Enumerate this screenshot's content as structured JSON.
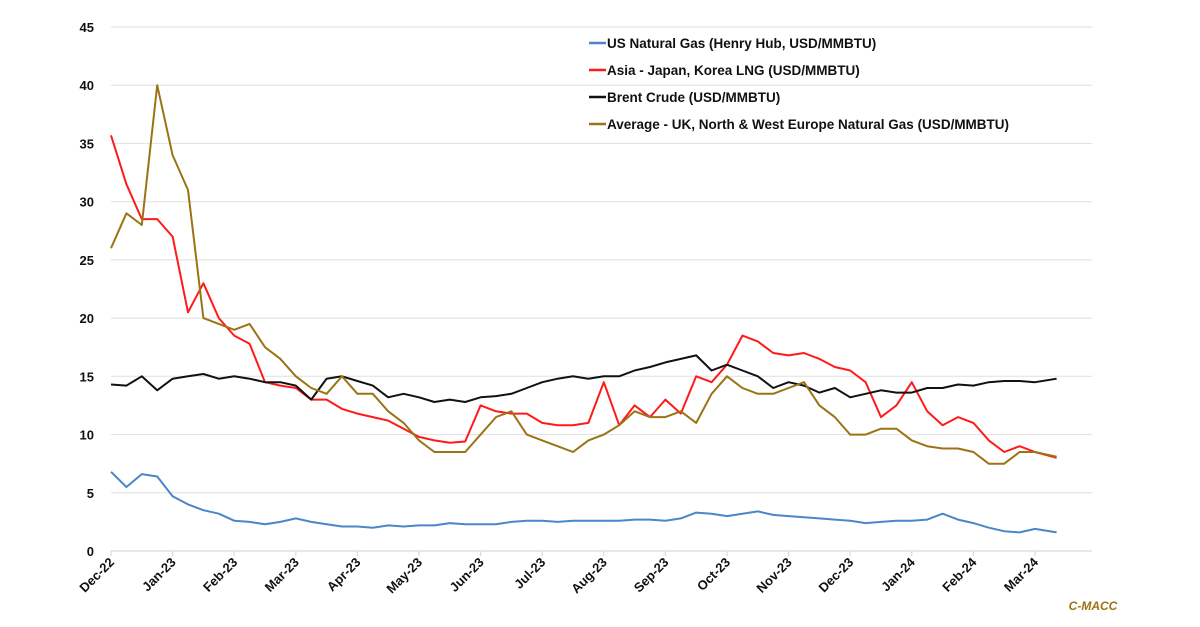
{
  "chart_data": {
    "type": "line",
    "title": "",
    "xlabel": "",
    "ylabel": "",
    "ylim": [
      0,
      45
    ],
    "yticks": [
      0,
      5,
      10,
      15,
      20,
      25,
      30,
      35,
      40,
      45
    ],
    "grid": true,
    "legend_position": "top-right",
    "x_start": "Dec-22",
    "x_unit": "months since Dec-22",
    "xlim": [
      0,
      15.35
    ],
    "xtick_labels": [
      "Dec-22",
      "Jan-23",
      "Feb-23",
      "Mar-23",
      "Apr-23",
      "May-23",
      "Jun-23",
      "Jul-23",
      "Aug-23",
      "Sep-23",
      "Oct-23",
      "Nov-23",
      "Dec-23",
      "Jan-24",
      "Feb-24",
      "Mar-24"
    ],
    "x": [
      0,
      0.25,
      0.5,
      0.75,
      1,
      1.25,
      1.5,
      1.75,
      2,
      2.25,
      2.5,
      2.75,
      3,
      3.25,
      3.5,
      3.75,
      4,
      4.25,
      4.5,
      4.75,
      5,
      5.25,
      5.5,
      5.75,
      6,
      6.25,
      6.5,
      6.75,
      7,
      7.25,
      7.5,
      7.75,
      8,
      8.25,
      8.5,
      8.75,
      9,
      9.25,
      9.5,
      9.75,
      10,
      10.25,
      10.5,
      10.75,
      11,
      11.25,
      11.5,
      11.75,
      12,
      12.25,
      12.5,
      12.75,
      13,
      13.25,
      13.5,
      13.75,
      14,
      14.25,
      14.5,
      14.75,
      15,
      15.35
    ],
    "series": [
      {
        "name": "US Natural Gas (Henry Hub, USD/MMBTU)",
        "color": "#4a86c8",
        "values": [
          6.8,
          5.5,
          6.6,
          6.4,
          4.7,
          4.0,
          3.5,
          3.2,
          2.6,
          2.5,
          2.3,
          2.5,
          2.8,
          2.5,
          2.3,
          2.1,
          2.1,
          2.0,
          2.2,
          2.1,
          2.2,
          2.2,
          2.4,
          2.3,
          2.3,
          2.3,
          2.5,
          2.6,
          2.6,
          2.5,
          2.6,
          2.6,
          2.6,
          2.6,
          2.7,
          2.7,
          2.6,
          2.8,
          3.3,
          3.2,
          3.0,
          3.2,
          3.4,
          3.1,
          3.0,
          2.9,
          2.8,
          2.7,
          2.6,
          2.4,
          2.5,
          2.6,
          2.6,
          2.7,
          3.2,
          2.7,
          2.4,
          2.0,
          1.7,
          1.6,
          1.9,
          1.6
        ]
      },
      {
        "name": "Asia - Japan, Korea LNG (USD/MMBTU)",
        "color": "#ff1a1a",
        "values": [
          35.7,
          31.5,
          28.5,
          28.5,
          27.0,
          20.5,
          23.0,
          20.0,
          18.5,
          17.8,
          14.5,
          14.2,
          14.0,
          13.0,
          13.0,
          12.2,
          11.8,
          11.5,
          11.2,
          10.5,
          9.8,
          9.5,
          9.3,
          9.4,
          12.5,
          12.0,
          11.8,
          11.8,
          11.0,
          10.8,
          10.8,
          11.0,
          14.5,
          10.8,
          12.5,
          11.5,
          13.0,
          11.8,
          15.0,
          14.5,
          16.0,
          18.5,
          18.0,
          17.0,
          16.8,
          17.0,
          16.5,
          15.8,
          15.5,
          14.5,
          11.5,
          12.5,
          14.5,
          12.0,
          10.8,
          11.5,
          11.0,
          9.5,
          8.5,
          9.0,
          8.5,
          8.0
        ]
      },
      {
        "name": "Brent Crude (USD/MMBTU)",
        "color": "#111111",
        "values": [
          14.3,
          14.2,
          15.0,
          13.8,
          14.8,
          15.0,
          15.2,
          14.8,
          15.0,
          14.8,
          14.5,
          14.5,
          14.2,
          13.0,
          14.8,
          15.0,
          14.6,
          14.2,
          13.2,
          13.5,
          13.2,
          12.8,
          13.0,
          12.8,
          13.2,
          13.3,
          13.5,
          14.0,
          14.5,
          14.8,
          15.0,
          14.8,
          15.0,
          15.0,
          15.5,
          15.8,
          16.2,
          16.5,
          16.8,
          15.5,
          16.0,
          15.5,
          15.0,
          14.0,
          14.5,
          14.2,
          13.6,
          14.0,
          13.2,
          13.5,
          13.8,
          13.6,
          13.6,
          14.0,
          14.0,
          14.3,
          14.2,
          14.5,
          14.6,
          14.6,
          14.5,
          14.8
        ]
      },
      {
        "name": "Average - UK, North & West Europe Natural Gas (USD/MMBTU)",
        "color": "#9b7314",
        "values": [
          26.0,
          29.0,
          28.0,
          40.0,
          34.0,
          31.0,
          20.0,
          19.5,
          19.0,
          19.5,
          17.5,
          16.5,
          15.0,
          14.0,
          13.5,
          15.0,
          13.5,
          13.5,
          12.0,
          11.0,
          9.5,
          8.5,
          8.5,
          8.5,
          10.0,
          11.5,
          12.0,
          10.0,
          9.5,
          9.0,
          8.5,
          9.5,
          10.0,
          10.8,
          12.0,
          11.5,
          11.5,
          12.0,
          11.0,
          13.5,
          15.0,
          14.0,
          13.5,
          13.5,
          14.0,
          14.5,
          12.5,
          11.5,
          10.0,
          10.0,
          10.5,
          10.5,
          9.5,
          9.0,
          8.8,
          8.8,
          8.5,
          7.5,
          7.5,
          8.5,
          8.5,
          8.1
        ]
      }
    ],
    "credit": "C-MACC"
  }
}
